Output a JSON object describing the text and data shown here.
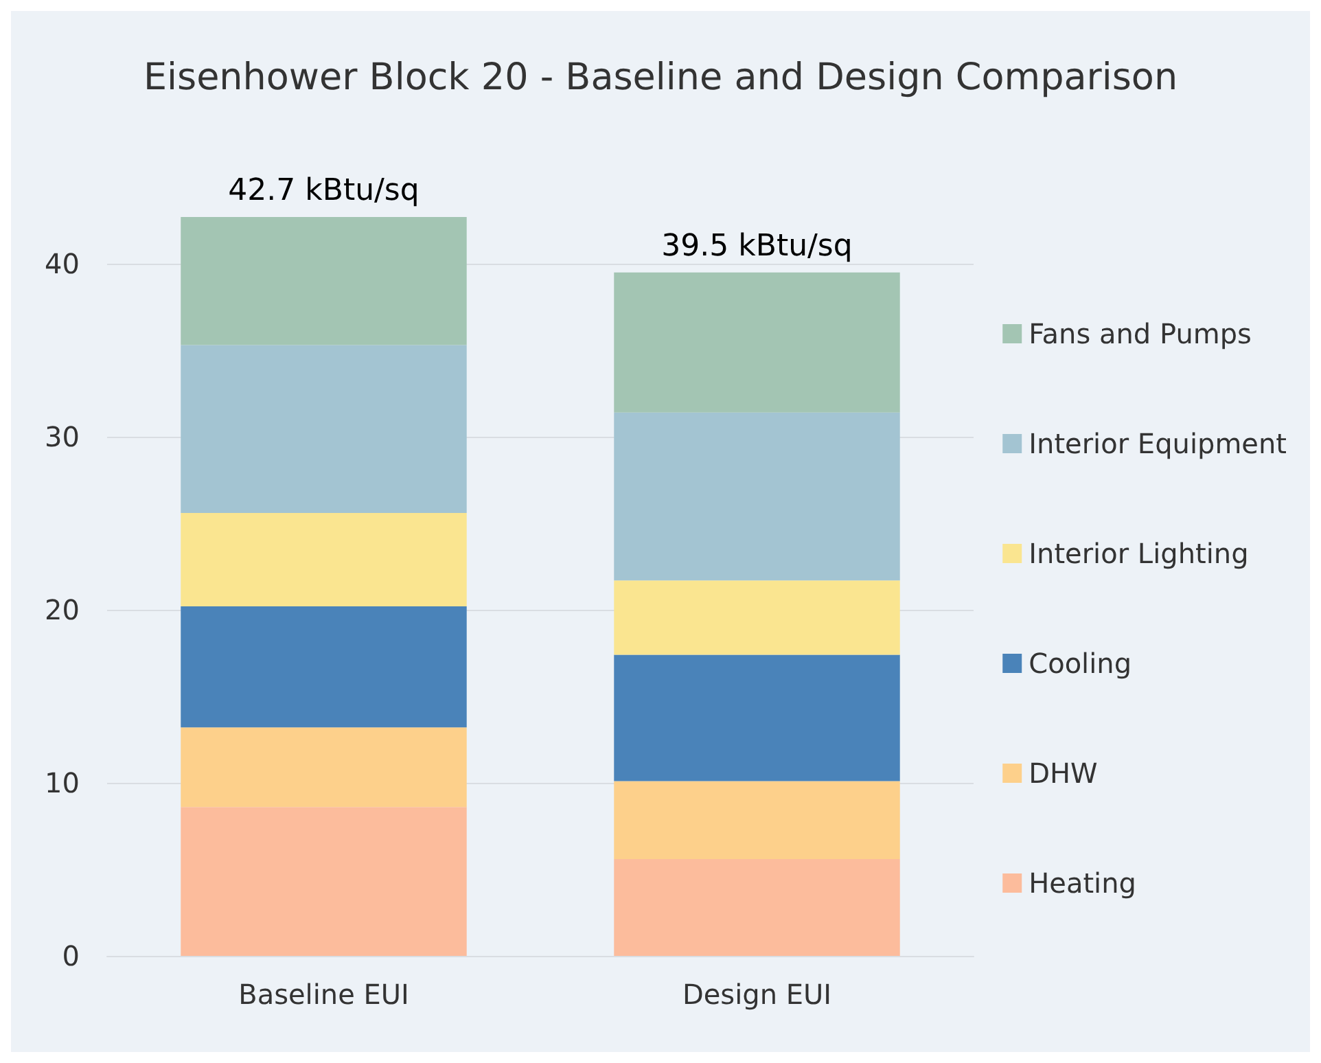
{
  "chart_data": {
    "type": "bar",
    "title": "Eisenhower Block 20 - Baseline and Design Comparison",
    "categories": [
      "Baseline EUI",
      "Design EUI"
    ],
    "stacked": true,
    "series": [
      {
        "name": "Heating",
        "color": "#fcbc9c",
        "values": [
          8.6,
          5.6
        ]
      },
      {
        "name": "DHW",
        "color": "#fdd08b",
        "values": [
          4.6,
          4.5
        ]
      },
      {
        "name": "Cooling",
        "color": "#4a83b9",
        "values": [
          7.0,
          7.3
        ]
      },
      {
        "name": "Interior Lighting",
        "color": "#fae590",
        "values": [
          5.4,
          4.3
        ]
      },
      {
        "name": "Interior Equipment",
        "color": "#a3c4d2",
        "values": [
          9.7,
          9.7
        ]
      },
      {
        "name": "Fans and Pumps",
        "color": "#a3c5b3",
        "values": [
          7.4,
          8.1
        ]
      }
    ],
    "totals": [
      "42.7 kBtu/sq",
      "39.5 kBtu/sq"
    ],
    "ylim": [
      0,
      42.7
    ],
    "yticks": [
      0,
      10,
      20,
      30,
      40
    ],
    "grid": "y",
    "legend": "right"
  }
}
